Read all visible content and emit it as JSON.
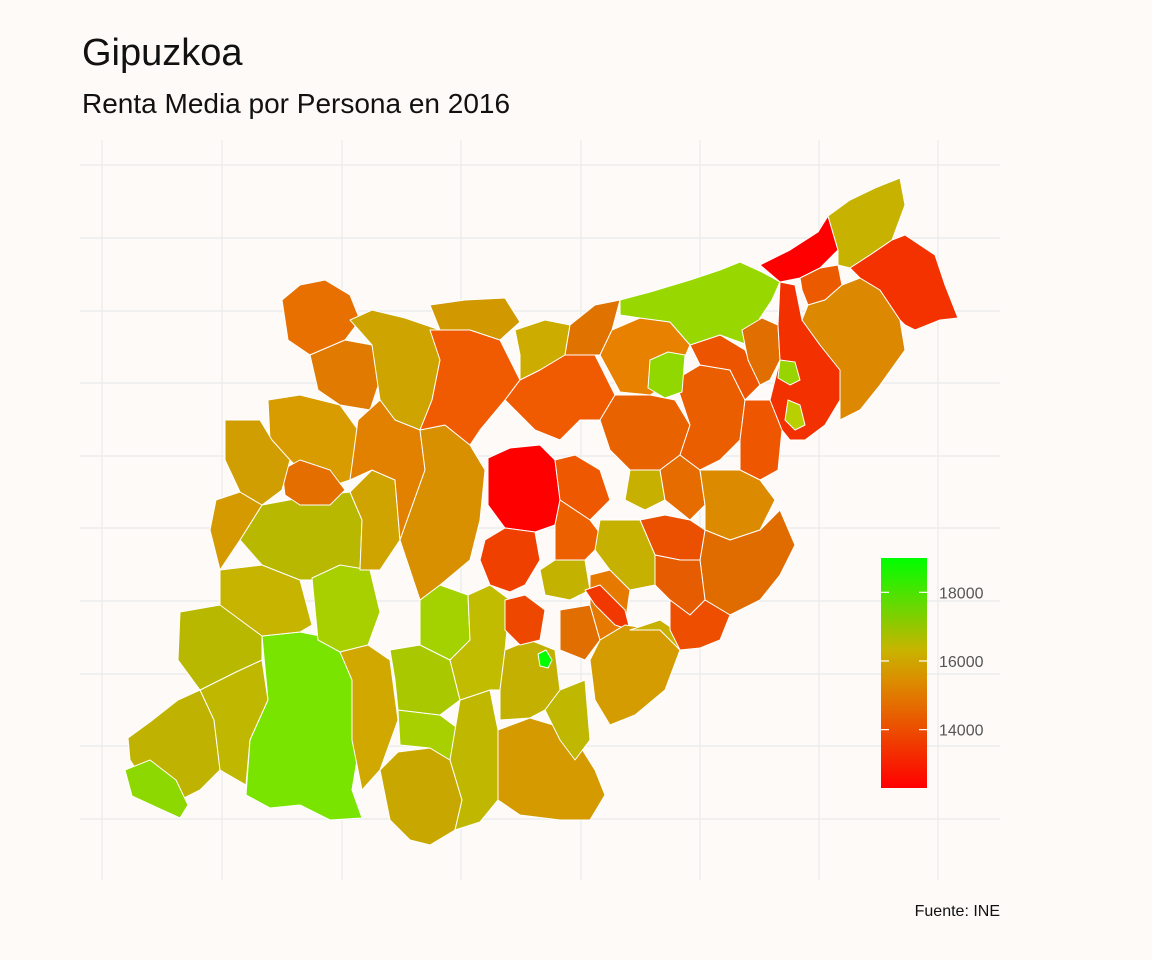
{
  "title": "Gipuzkoa",
  "subtitle": "Renta Media por Persona en 2016",
  "caption": "Fuente: INE",
  "legend": {
    "colors": {
      "low": "#ff0000",
      "mid": "#c8b400",
      "high": "#00ff00"
    },
    "min": 12300,
    "max": 19000,
    "ticks": [
      {
        "value": 14000,
        "label": "14000"
      },
      {
        "value": 16000,
        "label": "16000"
      },
      {
        "value": 18000,
        "label": "18000"
      }
    ]
  }
}
